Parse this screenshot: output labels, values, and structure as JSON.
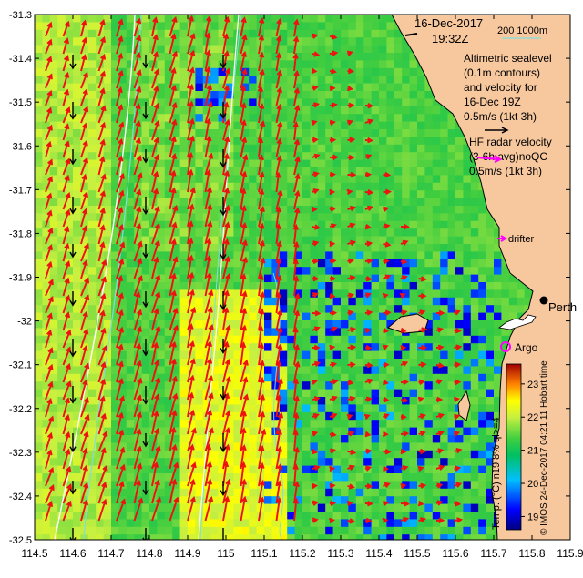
{
  "map": {
    "date_label": "16-Dec-2017",
    "time_label": "19:32Z",
    "depth_label": "200  1000m",
    "legend_altimetry": [
      "Altimetric sealevel",
      "(0.1m contours)",
      "and velocity for",
      "16-Dec 19Z",
      "0.5m/s (1kt 3h)"
    ],
    "legend_hf": [
      "HF radar velocity",
      "(3-6h avg)noQC",
      "0.5m/s (1kt 3h)"
    ],
    "place_perth": "Perth",
    "label_argo": "Argo",
    "label_drifter": "drifter",
    "colorbar_title": "Temp. (°C) n19 8% ql>=4",
    "colorbar_ticks": [
      "19",
      "20",
      "21",
      "22",
      "23"
    ],
    "credit": "© IMOS 24-Dec-2017 04:21:11 Hobart time",
    "axes": {
      "lon_ticks": [
        "114.5",
        "114.6",
        "114.7",
        "114.8",
        "114.9",
        "115",
        "115.1",
        "115.2",
        "115.3",
        "115.4",
        "115.5",
        "115.6",
        "115.7",
        "115.8",
        "115.9"
      ],
      "lat_ticks": [
        "-31.3",
        "-31.4",
        "-31.5",
        "-31.6",
        "-31.7",
        "-31.8",
        "-31.9",
        "-32",
        "-32.1",
        "-32.2",
        "-32.3",
        "-32.4",
        "-32.5"
      ],
      "lon_range": [
        114.5,
        115.9
      ],
      "lat_range": [
        -32.5,
        -31.3
      ]
    },
    "colors": {
      "land": "#f7c79e",
      "hf_arrow": "#ee1111",
      "alt_arrow": "#000000",
      "isobath": "#7fdede",
      "argo_marker": "#ff00ff"
    },
    "sst_scale": [
      18.6,
      23.6
    ]
  }
}
